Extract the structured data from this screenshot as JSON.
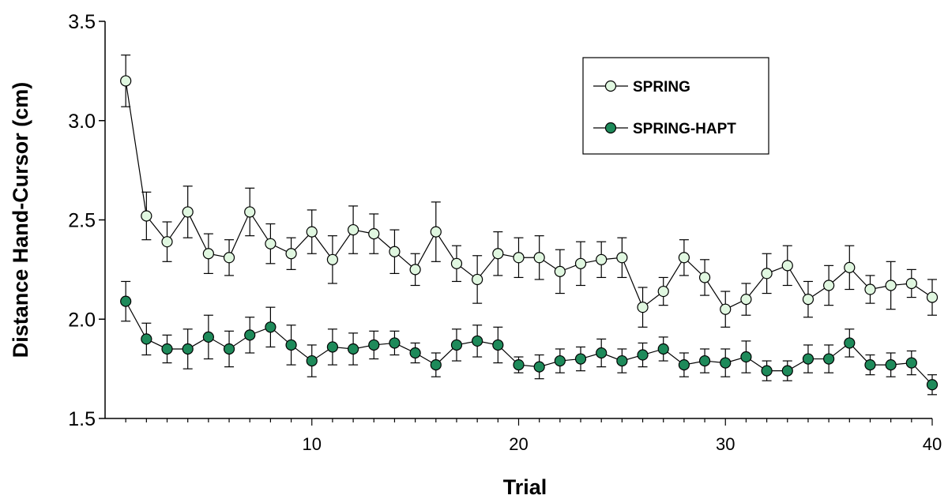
{
  "chart_data": {
    "type": "line",
    "title": "",
    "xlabel": "Trial",
    "ylabel": "Distance Hand-Cursor (cm)",
    "xlim": [
      0,
      40
    ],
    "ylim": [
      1.5,
      3.5
    ],
    "xticks": [
      10,
      20,
      30,
      40
    ],
    "xtick_labels": [
      "10",
      "20",
      "30",
      "40"
    ],
    "yticks": [
      1.5,
      2.0,
      2.5,
      3.0,
      3.5
    ],
    "ytick_labels": [
      "1.5",
      "2.0",
      "2.5",
      "3.0",
      "3.5"
    ],
    "grid": false,
    "legend_position": "top-right",
    "x": [
      1,
      2,
      3,
      4,
      5,
      6,
      7,
      8,
      9,
      10,
      11,
      12,
      13,
      14,
      15,
      16,
      17,
      18,
      19,
      20,
      21,
      22,
      23,
      24,
      25,
      26,
      27,
      28,
      29,
      30,
      31,
      32,
      33,
      34,
      35,
      36,
      37,
      38,
      39,
      40
    ],
    "series": [
      {
        "name": "SPRING",
        "marker_fill": "#e0f7e0",
        "values": [
          3.2,
          2.52,
          2.39,
          2.54,
          2.33,
          2.31,
          2.54,
          2.38,
          2.33,
          2.44,
          2.3,
          2.45,
          2.43,
          2.34,
          2.25,
          2.44,
          2.28,
          2.2,
          2.33,
          2.31,
          2.31,
          2.24,
          2.28,
          2.3,
          2.31,
          2.06,
          2.14,
          2.31,
          2.21,
          2.05,
          2.1,
          2.23,
          2.27,
          2.1,
          2.17,
          2.26,
          2.15,
          2.17,
          2.18,
          2.11
        ],
        "errors": [
          0.13,
          0.12,
          0.1,
          0.13,
          0.1,
          0.09,
          0.12,
          0.1,
          0.08,
          0.11,
          0.12,
          0.12,
          0.1,
          0.11,
          0.08,
          0.15,
          0.09,
          0.12,
          0.11,
          0.1,
          0.11,
          0.11,
          0.11,
          0.09,
          0.1,
          0.1,
          0.07,
          0.09,
          0.09,
          0.09,
          0.08,
          0.1,
          0.1,
          0.09,
          0.1,
          0.11,
          0.07,
          0.12,
          0.07,
          0.09
        ]
      },
      {
        "name": "SPRING-HAPT",
        "marker_fill": "#1e8a5a",
        "values": [
          2.09,
          1.9,
          1.85,
          1.85,
          1.91,
          1.85,
          1.92,
          1.96,
          1.87,
          1.79,
          1.86,
          1.85,
          1.87,
          1.88,
          1.83,
          1.77,
          1.87,
          1.89,
          1.87,
          1.77,
          1.76,
          1.79,
          1.8,
          1.83,
          1.79,
          1.82,
          1.85,
          1.77,
          1.79,
          1.78,
          1.81,
          1.74,
          1.74,
          1.8,
          1.8,
          1.88,
          1.77,
          1.77,
          1.78,
          1.67
        ],
        "errors": [
          0.1,
          0.08,
          0.07,
          0.1,
          0.11,
          0.09,
          0.09,
          0.1,
          0.1,
          0.08,
          0.09,
          0.08,
          0.07,
          0.06,
          0.05,
          0.06,
          0.08,
          0.08,
          0.09,
          0.04,
          0.06,
          0.06,
          0.06,
          0.07,
          0.06,
          0.06,
          0.06,
          0.06,
          0.06,
          0.07,
          0.08,
          0.05,
          0.05,
          0.07,
          0.07,
          0.07,
          0.05,
          0.06,
          0.06,
          0.05
        ]
      }
    ]
  }
}
